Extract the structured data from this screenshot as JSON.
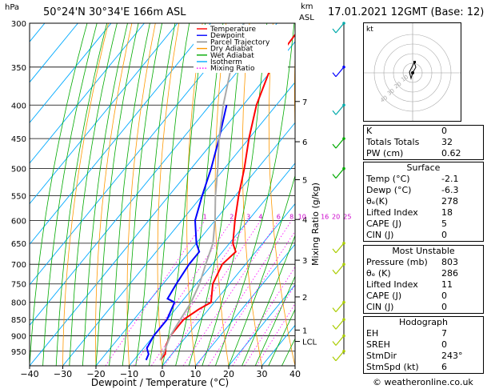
{
  "header": {
    "left_unit": "hPa",
    "location": "50°24'N  30°34'E  166m  ASL",
    "right_unit_line1": "km",
    "right_unit_line2": "ASL",
    "datetime": "17.01.2021  12GMT  (Base: 12)"
  },
  "legend": [
    {
      "label": "Temperature",
      "color": "#ff0000",
      "dash": "solid"
    },
    {
      "label": "Dewpoint",
      "color": "#0000ff",
      "dash": "solid"
    },
    {
      "label": "Parcel Trajectory",
      "color": "#888888",
      "dash": "solid"
    },
    {
      "label": "Dry Adiabat",
      "color": "#ff9900",
      "dash": "solid"
    },
    {
      "label": "Wet Adiabat",
      "color": "#00aa00",
      "dash": "solid"
    },
    {
      "label": "Isotherm",
      "color": "#00aaff",
      "dash": "solid"
    },
    {
      "label": "Mixing Ratio",
      "color": "#ff00ff",
      "dash": "dotted"
    }
  ],
  "chart_data": {
    "type": "line",
    "title": "",
    "xlabel": "Dewpoint / Temperature (°C)",
    "ylabel_right": "Mixing Ratio (g/kg)",
    "xlim": [
      -40,
      40
    ],
    "x_ticks": [
      "−40",
      "−30",
      "−20",
      "−10",
      "0",
      "10",
      "20",
      "30",
      "40"
    ],
    "pressure_levels": [
      300,
      350,
      400,
      450,
      500,
      550,
      600,
      650,
      700,
      750,
      800,
      850,
      900,
      950
    ],
    "altitude_km": [
      {
        "label": "7",
        "pressure": 395
      },
      {
        "label": "6",
        "pressure": 455
      },
      {
        "label": "5",
        "pressure": 520
      },
      {
        "label": "4",
        "pressure": 598
      },
      {
        "label": "3",
        "pressure": 690
      },
      {
        "label": "2",
        "pressure": 785
      },
      {
        "label": "1",
        "pressure": 882
      },
      {
        "label": "LCL",
        "pressure": 918
      }
    ],
    "mixing_ratio_labels": [
      "1",
      "2",
      "3",
      "4",
      "6",
      "8",
      "10",
      "16",
      "20",
      "25"
    ],
    "mixing_ratio_values": [
      1,
      2,
      3,
      4,
      6,
      8,
      10,
      16,
      20,
      25
    ],
    "series": [
      {
        "name": "Temperature",
        "color": "#ff0000",
        "points": [
          [
            300,
            -42
          ],
          [
            350,
            -41
          ],
          [
            400,
            -36
          ],
          [
            450,
            -30
          ],
          [
            500,
            -24
          ],
          [
            550,
            -19
          ],
          [
            600,
            -14
          ],
          [
            650,
            -9
          ],
          [
            670,
            -6
          ],
          [
            700,
            -7
          ],
          [
            750,
            -5
          ],
          [
            800,
            -1
          ],
          [
            820,
            -3
          ],
          [
            850,
            -5
          ],
          [
            900,
            -5
          ],
          [
            930,
            -4
          ],
          [
            960,
            -2
          ],
          [
            980,
            -2.1
          ]
        ]
      },
      {
        "name": "Dewpoint",
        "color": "#0000ff",
        "points": [
          [
            400,
            -45
          ],
          [
            450,
            -39
          ],
          [
            500,
            -34
          ],
          [
            550,
            -30
          ],
          [
            600,
            -26
          ],
          [
            650,
            -20
          ],
          [
            670,
            -17
          ],
          [
            700,
            -17
          ],
          [
            750,
            -16
          ],
          [
            790,
            -15
          ],
          [
            800,
            -12
          ],
          [
            850,
            -10
          ],
          [
            900,
            -10
          ],
          [
            940,
            -9
          ],
          [
            960,
            -7
          ],
          [
            980,
            -6.3
          ]
        ]
      },
      {
        "name": "Parcel Trajectory",
        "color": "#aaaaaa",
        "points": [
          [
            300,
            -60
          ],
          [
            350,
            -53
          ],
          [
            400,
            -46
          ],
          [
            450,
            -39
          ],
          [
            500,
            -32
          ],
          [
            550,
            -26
          ],
          [
            600,
            -20
          ],
          [
            650,
            -15
          ],
          [
            700,
            -12
          ],
          [
            750,
            -9
          ],
          [
            800,
            -7
          ],
          [
            850,
            -6
          ],
          [
            900,
            -5
          ],
          [
            950,
            -3
          ],
          [
            980,
            -2.1
          ]
        ]
      }
    ]
  },
  "hodograph": {
    "label": "kt",
    "ring_labels": [
      "10",
      "20",
      "30",
      "40"
    ]
  },
  "table": {
    "indices": [
      {
        "label": "K",
        "value": "0"
      },
      {
        "label": "Totals Totals",
        "value": "32"
      },
      {
        "label": "PW (cm)",
        "value": "0.62"
      }
    ],
    "surface": {
      "title": "Surface",
      "rows": [
        {
          "label": "Temp (°C)",
          "value": "-2.1"
        },
        {
          "label": "Dewp (°C)",
          "value": "-6.3"
        },
        {
          "label": "θₑ(K)",
          "value": "278"
        },
        {
          "label": "Lifted Index",
          "value": "18"
        },
        {
          "label": "CAPE (J)",
          "value": "5"
        },
        {
          "label": "CIN (J)",
          "value": "0"
        }
      ]
    },
    "unstable": {
      "title": "Most Unstable",
      "rows": [
        {
          "label": "Pressure (mb)",
          "value": "803"
        },
        {
          "label": "θₑ (K)",
          "value": "286"
        },
        {
          "label": "Lifted Index",
          "value": "11"
        },
        {
          "label": "CAPE (J)",
          "value": "0"
        },
        {
          "label": "CIN (J)",
          "value": "0"
        }
      ]
    },
    "hodo": {
      "title": "Hodograph",
      "rows": [
        {
          "label": "EH",
          "value": "7"
        },
        {
          "label": "SREH",
          "value": "0"
        },
        {
          "label": "StmDir",
          "value": "243°"
        },
        {
          "label": "StmSpd (kt)",
          "value": "6"
        }
      ]
    }
  },
  "footer": {
    "copyright": "© weatheronline.co.uk"
  }
}
